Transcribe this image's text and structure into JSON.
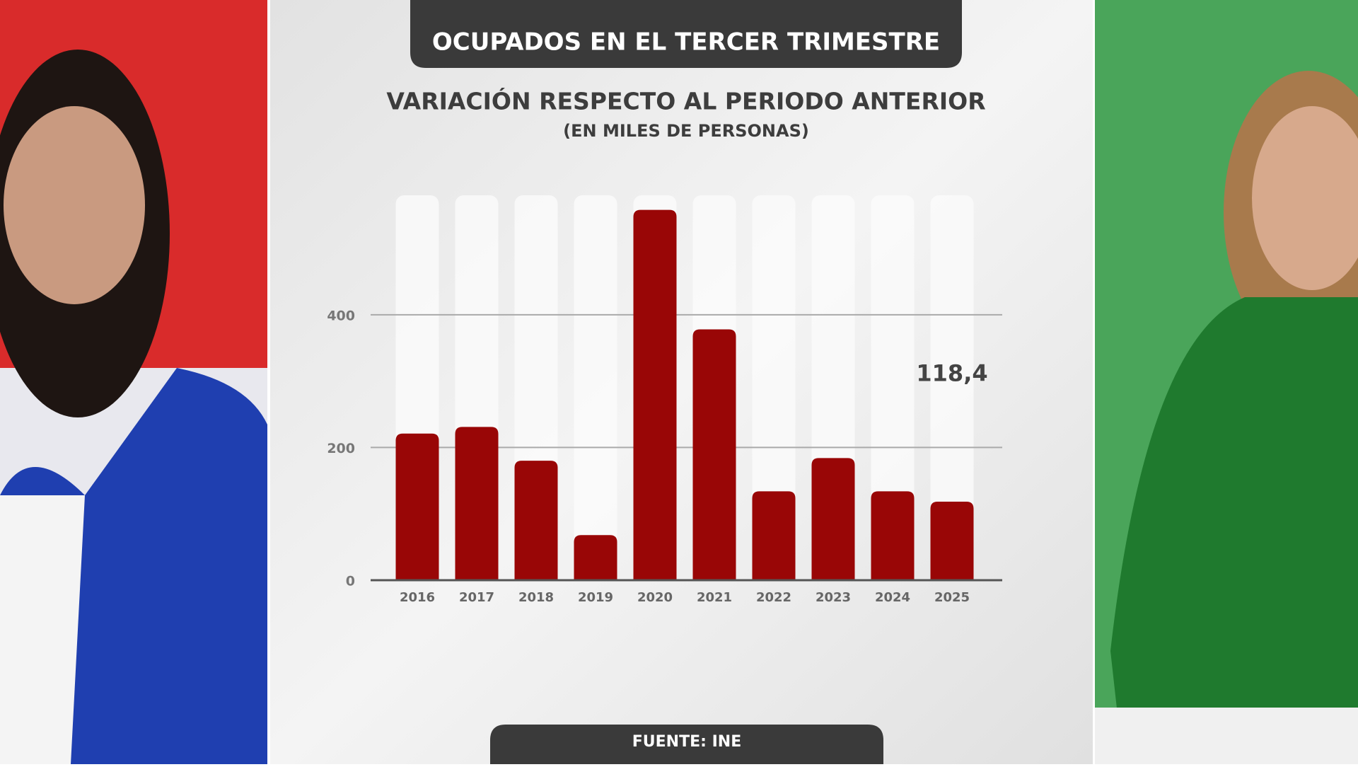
{
  "chart_data": {
    "type": "bar",
    "title": "OCUPADOS EN EL TERCER TRIMESTRE",
    "subtitle": "VARIACIÓN RESPECTO AL PERIODO ANTERIOR",
    "unit_note": "(EN MILES DE PERSONAS)",
    "source": "FUENTE: INE",
    "categories": [
      "2016",
      "2017",
      "2018",
      "2019",
      "2020",
      "2021",
      "2022",
      "2023",
      "2024",
      "2025"
    ],
    "values": [
      221,
      231,
      180,
      68,
      558,
      378,
      134,
      184,
      134,
      118.4
    ],
    "value_labels": [
      null,
      null,
      null,
      null,
      null,
      null,
      null,
      null,
      null,
      "118,4"
    ],
    "color": "#990606",
    "ylim": [
      0,
      580
    ],
    "yticks": [
      0,
      200,
      400
    ],
    "grid": true
  }
}
